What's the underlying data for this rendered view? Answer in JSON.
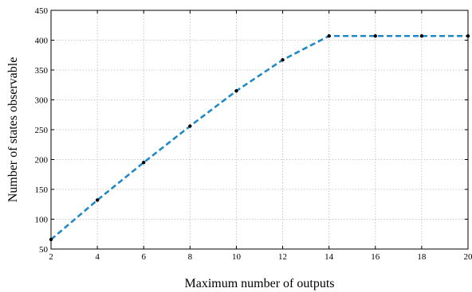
{
  "chart_data": {
    "type": "line",
    "xlabel": "Maximum number of outputs",
    "ylabel": "Number of states observable",
    "xlim": [
      2,
      20
    ],
    "ylim": [
      50,
      450
    ],
    "x_ticks": [
      2,
      4,
      6,
      8,
      10,
      12,
      14,
      16,
      18,
      20
    ],
    "y_ticks": [
      50,
      100,
      150,
      200,
      250,
      300,
      350,
      400,
      450
    ],
    "grid": true,
    "series": [
      {
        "color": "#1f88c8",
        "line_style": "dashed",
        "marker": "dot",
        "x": [
          2,
          4,
          6,
          8,
          10,
          12,
          14,
          16,
          18,
          20
        ],
        "y": [
          66,
          132,
          195,
          256,
          315,
          367,
          407,
          407,
          407,
          407
        ]
      }
    ]
  }
}
